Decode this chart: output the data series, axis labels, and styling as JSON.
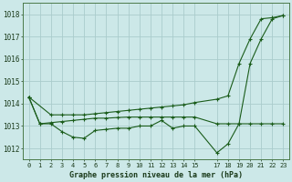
{
  "xlabel": "Graphe pression niveau de la mer (hPa)",
  "background_color": "#cce8e8",
  "grid_color": "#aacccc",
  "line_color": "#1a5c1a",
  "x_ticks": [
    0,
    1,
    2,
    3,
    4,
    5,
    6,
    7,
    8,
    9,
    10,
    11,
    12,
    13,
    14,
    15,
    17,
    18,
    19,
    20,
    21,
    22,
    23
  ],
  "ylim": [
    1011.5,
    1018.5
  ],
  "yticks": [
    1012,
    1013,
    1014,
    1015,
    1016,
    1017,
    1018
  ],
  "line1_x": [
    0,
    1,
    2,
    3,
    4,
    5,
    6,
    7,
    8,
    9,
    10,
    11,
    12,
    13,
    14,
    15,
    17,
    18,
    19,
    20,
    21,
    22,
    23
  ],
  "line1_y": [
    1014.3,
    1013.1,
    1013.1,
    1012.75,
    1012.5,
    1012.45,
    1012.8,
    1012.85,
    1012.9,
    1012.9,
    1013.0,
    1013.0,
    1013.25,
    1012.9,
    1013.0,
    1013.0,
    1011.8,
    1012.2,
    1013.1,
    1015.8,
    1016.9,
    1017.8,
    1017.95
  ],
  "line2_x": [
    0,
    1,
    2,
    3,
    4,
    5,
    6,
    7,
    8,
    9,
    10,
    11,
    12,
    13,
    14,
    15,
    17,
    18,
    19,
    20,
    21,
    22,
    23
  ],
  "line2_y": [
    1014.3,
    1013.1,
    1013.15,
    1013.2,
    1013.25,
    1013.3,
    1013.35,
    1013.35,
    1013.38,
    1013.4,
    1013.4,
    1013.4,
    1013.4,
    1013.4,
    1013.4,
    1013.4,
    1013.1,
    1013.1,
    1013.1,
    1013.1,
    1013.1,
    1013.1,
    1013.1
  ],
  "line3_x": [
    0,
    2,
    3,
    4,
    5,
    6,
    7,
    8,
    9,
    10,
    11,
    12,
    13,
    14,
    15,
    17,
    18,
    19,
    20,
    21,
    22,
    23
  ],
  "line3_y": [
    1014.3,
    1013.5,
    1013.5,
    1013.5,
    1013.5,
    1013.55,
    1013.6,
    1013.65,
    1013.7,
    1013.75,
    1013.8,
    1013.85,
    1013.9,
    1013.95,
    1014.05,
    1014.2,
    1014.35,
    1015.8,
    1016.9,
    1017.8,
    1017.85,
    1017.95
  ],
  "figsize": [
    3.2,
    2.0
  ],
  "dpi": 100
}
